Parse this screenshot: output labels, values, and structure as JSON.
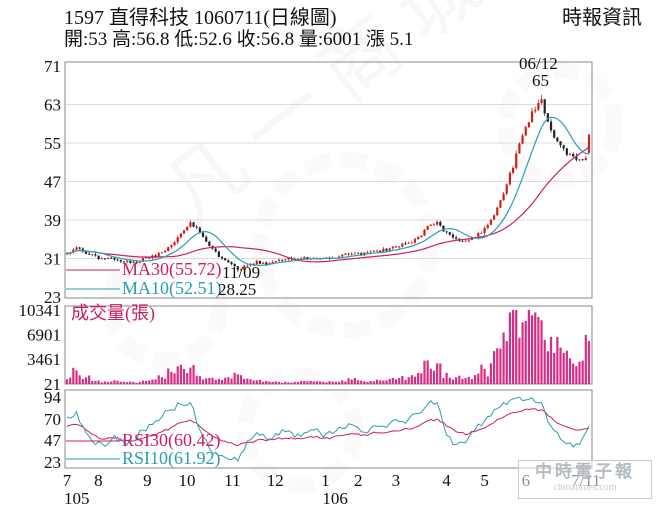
{
  "header": {
    "title": "1597 直得科技 1060711(日線圖)",
    "provider": "時報資訊",
    "quote_line": "開:53 高:56.8 低:52.6 收:56.8 量:6001 漲 5.1"
  },
  "watermark": {
    "brand": "中時電子報",
    "domain": "chinatimes.com",
    "background_text": "凡一商城"
  },
  "chart_data": {
    "type": "candlestick",
    "title": "1597 直得科技 日線圖",
    "panels": [
      "price",
      "volume",
      "rsi"
    ],
    "meta": {
      "symbol": "1597",
      "name": "直得科技",
      "date_label": "1060711",
      "open": 53,
      "high": 56.8,
      "low": 52.6,
      "close": 56.8,
      "volume": 6001,
      "change": 5.1
    },
    "price_axis": {
      "ticks": [
        71,
        63,
        55,
        47,
        39,
        31,
        23
      ],
      "min": 23,
      "max": 71
    },
    "volume_axis": {
      "label": "成交量(張)",
      "ticks": [
        10341,
        6901,
        3461,
        21
      ],
      "min": 0,
      "max": 10341
    },
    "rsi_axis": {
      "ticks": [
        94,
        70,
        47,
        23
      ]
    },
    "x_axis": {
      "month_labels": [
        "7",
        "8",
        "9",
        "10",
        "11",
        "12",
        "1",
        "2",
        "3",
        "4",
        "5",
        "6",
        "7/11"
      ],
      "positions": [
        0,
        0.06,
        0.154,
        0.23,
        0.317,
        0.399,
        0.495,
        0.558,
        0.63,
        0.727,
        0.8,
        0.879,
        0.994
      ],
      "year_labels": [
        {
          "text": "105",
          "position": 0
        },
        {
          "text": "106",
          "position": 0.495
        }
      ]
    },
    "weekly": {
      "close": [
        32.0,
        33.2,
        32.2,
        31.3,
        30.8,
        31.0,
        30.4,
        30.2,
        30.8,
        31.4,
        32.3,
        33.8,
        36.2,
        38.8,
        36.2,
        33.6,
        31.6,
        30.2,
        28.6,
        29.6,
        30.3,
        30.0,
        30.6,
        30.9,
        30.6,
        31.0,
        31.3,
        30.9,
        31.1,
        31.6,
        32.1,
        31.8,
        32.3,
        32.6,
        33.1,
        33.6,
        34.2,
        35.2,
        37.6,
        38.6,
        36.2,
        35.1,
        34.6,
        35.6,
        37.2,
        40.2,
        44.8,
        50.2,
        56.5,
        61.5,
        63.5,
        57.5,
        54.0,
        52.6,
        51.7,
        56.8
      ],
      "volume": [
        650,
        1900,
        950,
        420,
        360,
        520,
        310,
        290,
        470,
        620,
        950,
        1700,
        2700,
        2300,
        1100,
        850,
        720,
        950,
        1350,
        750,
        520,
        420,
        360,
        310,
        290,
        420,
        360,
        310,
        330,
        520,
        620,
        470,
        420,
        520,
        720,
        830,
        950,
        1550,
        3300,
        2900,
        1550,
        950,
        850,
        1250,
        2100,
        4600,
        7200,
        10341,
        8600,
        9600,
        8900,
        6600,
        5100,
        3600,
        3100,
        6001
      ],
      "rsi10": [
        72,
        78,
        55,
        42,
        40,
        52,
        44,
        46,
        58,
        64,
        72,
        80,
        86,
        88,
        58,
        38,
        30,
        26,
        24,
        46,
        55,
        48,
        54,
        56,
        50,
        55,
        58,
        50,
        54,
        60,
        64,
        56,
        60,
        62,
        65,
        67,
        70,
        76,
        86,
        88,
        52,
        42,
        44,
        58,
        68,
        80,
        88,
        92,
        90,
        93,
        88,
        62,
        48,
        44,
        42,
        61.92
      ],
      "rsi30": [
        62,
        64,
        58,
        52,
        48,
        49,
        47,
        46,
        49,
        52,
        56,
        61,
        66,
        69,
        62,
        54,
        48,
        44,
        41,
        44,
        47,
        46,
        48,
        49,
        48,
        49,
        50,
        49,
        50,
        52,
        54,
        52,
        54,
        55,
        56,
        57,
        59,
        62,
        68,
        70,
        62,
        56,
        53,
        56,
        60,
        66,
        72,
        77,
        79,
        81,
        80,
        72,
        64,
        60,
        58,
        60.42
      ]
    },
    "extremes": {
      "high": {
        "index": 50,
        "value": 65,
        "date_label": "06/12"
      },
      "low": {
        "index": 18,
        "value": 28.25,
        "date_label": "11/09"
      }
    },
    "indicators": {
      "ma30_label": "MA30(55.72)",
      "ma30_value": 55.72,
      "ma10_label": "MA10(52.51)",
      "ma10_value": 52.51,
      "rsi30_label": "RSI30(60.42)",
      "rsi30_value": 60.42,
      "rsi10_label": "RSI10(61.92)",
      "rsi10_value": 61.92
    },
    "colors": {
      "up": "#cc2218",
      "down": "#222222",
      "volume": "#d62d86",
      "ma30": "#cb2065",
      "ma10": "#2a9fb4",
      "rsi30": "#cb2065",
      "rsi10": "#2a9fb4",
      "grid": "#dcdcdc",
      "border": "#8a8a8a"
    },
    "legend_position": "inside-left",
    "grid": true
  }
}
